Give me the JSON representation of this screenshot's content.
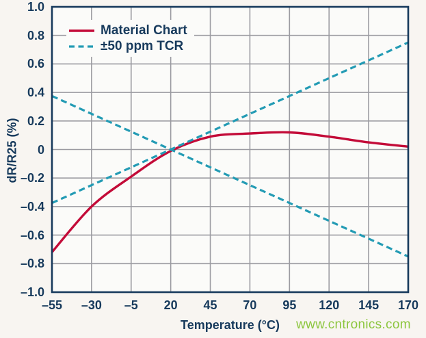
{
  "page": {
    "background": "#f8f5f1",
    "plot_background": "#fbfbf9"
  },
  "colors": {
    "axis": "#173a5c",
    "text": "#173a5c",
    "grid": "#9b9ba1",
    "material_red": "#c30b38",
    "tcr_teal": "#239bb4",
    "watermark_green": "#8cc63e"
  },
  "chart_data": {
    "type": "line",
    "title": "",
    "xlabel": "Temperature (°C)",
    "ylabel": "dR/R25 (%)",
    "xlim": [
      -55,
      170
    ],
    "ylim": [
      -1.0,
      1.0
    ],
    "grid": true,
    "legend_position": "top-left-inside",
    "x_ticks": [
      {
        "value": -55,
        "label": "–55"
      },
      {
        "value": -30,
        "label": "–30"
      },
      {
        "value": -5,
        "label": "–5"
      },
      {
        "value": 20,
        "label": "20"
      },
      {
        "value": 45,
        "label": "45"
      },
      {
        "value": 70,
        "label": "70"
      },
      {
        "value": 95,
        "label": "95"
      },
      {
        "value": 120,
        "label": "120"
      },
      {
        "value": 145,
        "label": "145"
      },
      {
        "value": 170,
        "label": "170"
      }
    ],
    "y_ticks": [
      {
        "value": 1.0,
        "label": "1.0"
      },
      {
        "value": 0.8,
        "label": "0.8"
      },
      {
        "value": 0.6,
        "label": "0.6"
      },
      {
        "value": 0.4,
        "label": "0.4"
      },
      {
        "value": 0.2,
        "label": "0.2"
      },
      {
        "value": 0.0,
        "label": "0"
      },
      {
        "value": -0.2,
        "label": "–0.2"
      },
      {
        "value": -0.4,
        "label": "–0.4"
      },
      {
        "value": -0.6,
        "label": "–0.6"
      },
      {
        "value": -0.8,
        "label": "–0.8"
      },
      {
        "value": -1.0,
        "label": "–1.0"
      }
    ],
    "series": [
      {
        "name": "Material Chart",
        "color": "#c30b38",
        "style": "solid",
        "width": 3.4,
        "smooth": true,
        "points": [
          [
            -55,
            -0.72
          ],
          [
            -30,
            -0.4
          ],
          [
            -5,
            -0.19
          ],
          [
            20,
            -0.01
          ],
          [
            45,
            0.09
          ],
          [
            70,
            0.112
          ],
          [
            95,
            0.12
          ],
          [
            120,
            0.09
          ],
          [
            145,
            0.05
          ],
          [
            170,
            0.02
          ]
        ]
      },
      {
        "name": "+50 ppm TCR",
        "color": "#239bb4",
        "style": "dashed",
        "width": 3.2,
        "smooth": false,
        "points": [
          [
            -55,
            -0.375
          ],
          [
            170,
            0.75
          ]
        ]
      },
      {
        "name": "-50 ppm TCR",
        "color": "#239bb4",
        "style": "dashed",
        "width": 3.2,
        "smooth": false,
        "points": [
          [
            -55,
            0.375
          ],
          [
            170,
            -0.75
          ]
        ]
      }
    ],
    "legend": [
      {
        "label": "Material Chart",
        "color": "#c30b38",
        "style": "solid"
      },
      {
        "label": "±50 ppm TCR",
        "color": "#239bb4",
        "style": "dashed"
      }
    ]
  },
  "watermark": {
    "text": "www.cntronics.com",
    "color": "#8cc63e"
  }
}
